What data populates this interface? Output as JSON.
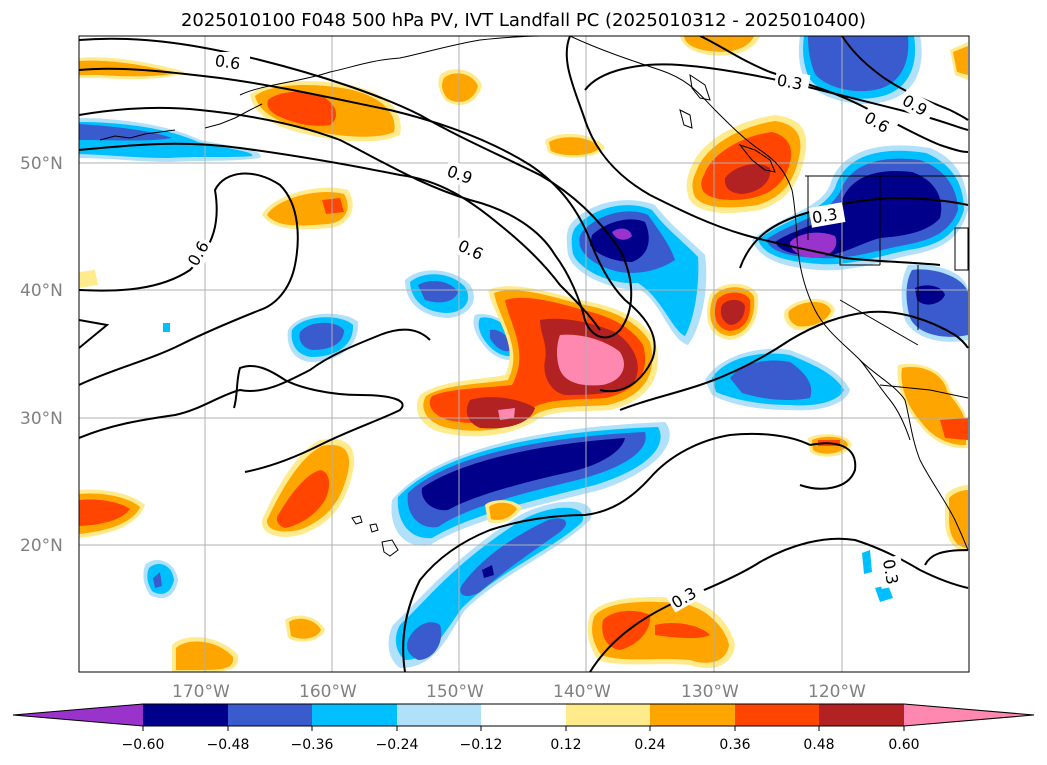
{
  "title": "2025010100 F048 500 hPa PV, IVT Landfall PC (2025010312 - 2025010400)",
  "lat_labels": [
    "50°N",
    "40°N",
    "30°N",
    "20°N"
  ],
  "lon_labels": [
    "170°W",
    "160°W",
    "150°W",
    "140°W",
    "130°W",
    "120°W"
  ],
  "contour_labels": [
    "0.6",
    "0.9",
    "0.6",
    "0.6",
    "0.3",
    "0.6",
    "0.9",
    "0.3",
    "0.3",
    "0.3"
  ],
  "colorbar": {
    "ticks": [
      "−0.60",
      "−0.48",
      "−0.36",
      "−0.24",
      "−0.12",
      "0.12",
      "0.24",
      "0.36",
      "0.48",
      "0.60"
    ],
    "colors": [
      "#9933cc",
      "#00008b",
      "#3a5bcd",
      "#00bfff",
      "#b0e0fa",
      "#ffffff",
      "#ffea8c",
      "#ffa500",
      "#ff4500",
      "#b22222",
      "#ff88b0"
    ]
  }
}
